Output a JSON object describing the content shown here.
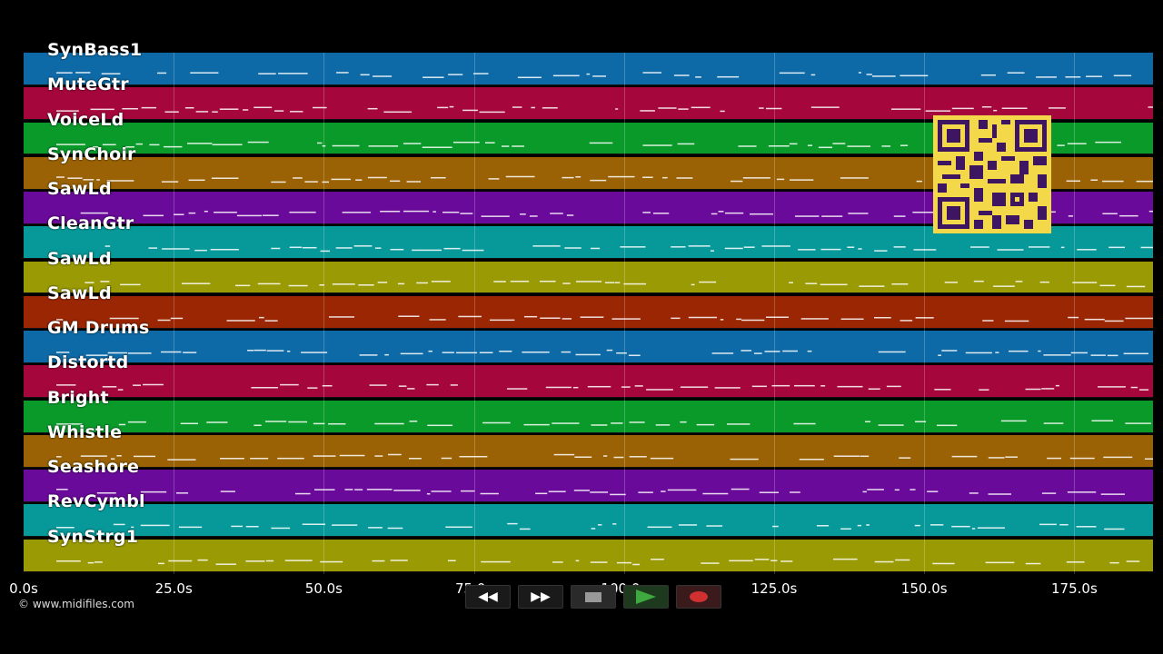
{
  "tracks": [
    {
      "name": "SynBass1",
      "color": "#0e6aa6"
    },
    {
      "name": "MuteGtr",
      "color": "#a5073c"
    },
    {
      "name": "VoiceLd",
      "color": "#0a9a2a"
    },
    {
      "name": "SynChoir",
      "color": "#9a6204"
    },
    {
      "name": "SawLd",
      "color": "#6a0a9a"
    },
    {
      "name": "CleanGtr",
      "color": "#07999a"
    },
    {
      "name": "SawLd",
      "color": "#9a9a04"
    },
    {
      "name": "SawLd",
      "color": "#9a2604"
    },
    {
      "name": "GM Drums",
      "color": "#0e6aa6"
    },
    {
      "name": "Distortd",
      "color": "#a5073c"
    },
    {
      "name": "Bright",
      "color": "#0a9a2a"
    },
    {
      "name": "Whistle",
      "color": "#9a6204"
    },
    {
      "name": "Seashore",
      "color": "#6a0a9a"
    },
    {
      "name": "RevCymbl",
      "color": "#07999a"
    },
    {
      "name": "SynStrg1",
      "color": "#9a9a04"
    }
  ],
  "timeline": {
    "ticks": [
      "0.0s",
      "25.0s",
      "50.0s",
      "75.0s",
      "100.0s",
      "125.0s",
      "150.0s",
      "175.0s"
    ]
  },
  "copyright": "© www.midifiles.com",
  "transport": {
    "rewind_icon": "rewind-icon",
    "forward_icon": "fast-forward-icon",
    "stop_icon": "stop-icon",
    "play_icon": "play-icon",
    "record_icon": "record-icon",
    "play_color": "#2e8b2e",
    "record_color": "#d03030"
  }
}
